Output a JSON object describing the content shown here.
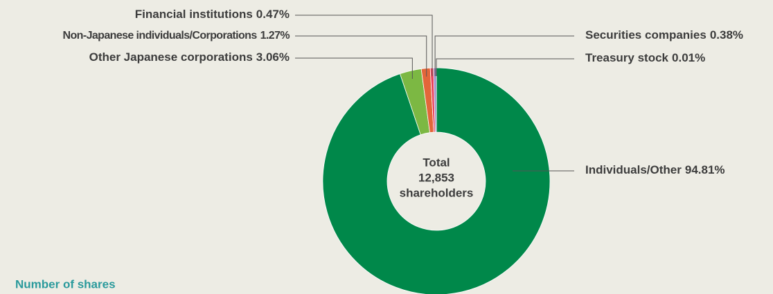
{
  "chart_data": {
    "type": "donut",
    "categories": [
      "Individuals/Other",
      "Other Japanese corporations",
      "Non-Japanese individuals/Corporations",
      "Financial institutions",
      "Securities companies",
      "Treasury stock"
    ],
    "values": [
      94.81,
      3.06,
      1.27,
      0.47,
      0.38,
      0.01
    ],
    "value_labels": [
      "94.81%",
      "3.06%",
      "1.27%",
      "0.47%",
      "0.38%",
      "0.01%"
    ],
    "colors": [
      "#00884a",
      "#7cb843",
      "#e3663a",
      "#e8435c",
      "#9a80c4",
      "#5a80c8"
    ],
    "center_label": [
      "Total",
      "12,853",
      "shareholders"
    ],
    "footer_heading": "Number of shares"
  }
}
